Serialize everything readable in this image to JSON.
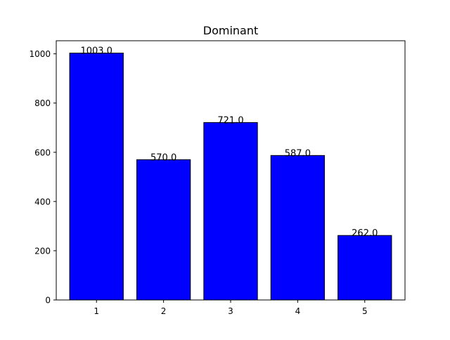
{
  "chart_data": {
    "type": "bar",
    "title": "Dominant",
    "xlabel": "",
    "ylabel": "",
    "categories": [
      "1",
      "2",
      "3",
      "4",
      "5"
    ],
    "values": [
      1003.0,
      570.0,
      721.0,
      587.0,
      262.0
    ],
    "value_labels": [
      "1003.0",
      "570.0",
      "721.0",
      "587.0",
      "262.0"
    ],
    "yticks": [
      0,
      200,
      400,
      600,
      800,
      1000
    ],
    "ytick_labels": [
      "0",
      "200",
      "400",
      "600",
      "800",
      "1000"
    ],
    "ylim": [
      0,
      1053.15
    ],
    "xlim": [
      0.4,
      5.6
    ],
    "grid": false,
    "colors": {
      "bar_fill": "#0000ff",
      "bar_edge": "#000000",
      "axis": "#000000",
      "text": "#000000"
    }
  }
}
